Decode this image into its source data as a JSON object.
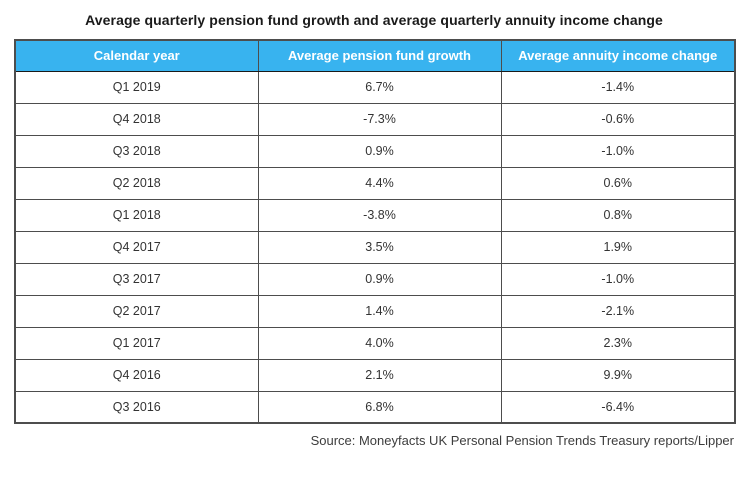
{
  "title": "Average quarterly pension fund growth and average quarterly annuity income change",
  "table": {
    "columns": [
      "Calendar year",
      "Average pension fund growth",
      "Average annuity income change"
    ],
    "rows": [
      [
        "Q1 2019",
        "6.7%",
        "-1.4%"
      ],
      [
        "Q4 2018",
        "-7.3%",
        "-0.6%"
      ],
      [
        "Q3 2018",
        "0.9%",
        "-1.0%"
      ],
      [
        "Q2 2018",
        "4.4%",
        "0.6%"
      ],
      [
        "Q1 2018",
        "-3.8%",
        "0.8%"
      ],
      [
        "Q4 2017",
        "3.5%",
        "1.9%"
      ],
      [
        "Q3 2017",
        "0.9%",
        "-1.0%"
      ],
      [
        "Q2 2017",
        "1.4%",
        "-2.1%"
      ],
      [
        "Q1 2017",
        "4.0%",
        "2.3%"
      ],
      [
        "Q4 2016",
        "2.1%",
        "9.9%"
      ],
      [
        "Q3 2016",
        "6.8%",
        "-6.4%"
      ]
    ]
  },
  "source": "Source: Moneyfacts UK Personal Pension Trends Treasury reports/Lipper",
  "colors": {
    "header_bg": "#38b3ef",
    "header_text": "#ffffff",
    "border": "#4d4d4d",
    "body_text": "#333333"
  },
  "chart_data": {
    "type": "table",
    "title": "Average quarterly pension fund growth and average quarterly annuity income change",
    "categories": [
      "Q1 2019",
      "Q4 2018",
      "Q3 2018",
      "Q2 2018",
      "Q1 2018",
      "Q4 2017",
      "Q3 2017",
      "Q2 2017",
      "Q1 2017",
      "Q4 2016",
      "Q3 2016"
    ],
    "series": [
      {
        "name": "Average pension fund growth",
        "values": [
          6.7,
          -7.3,
          0.9,
          4.4,
          -3.8,
          3.5,
          0.9,
          1.4,
          4.0,
          2.1,
          6.8
        ]
      },
      {
        "name": "Average annuity income change",
        "values": [
          -1.4,
          -0.6,
          -1.0,
          0.6,
          0.8,
          1.9,
          -1.0,
          -2.1,
          2.3,
          9.9,
          -6.4
        ]
      }
    ],
    "units": "%",
    "source": "Source: Moneyfacts UK Personal Pension Trends Treasury reports/Lipper",
    "legend_position": "none",
    "grid": true
  }
}
